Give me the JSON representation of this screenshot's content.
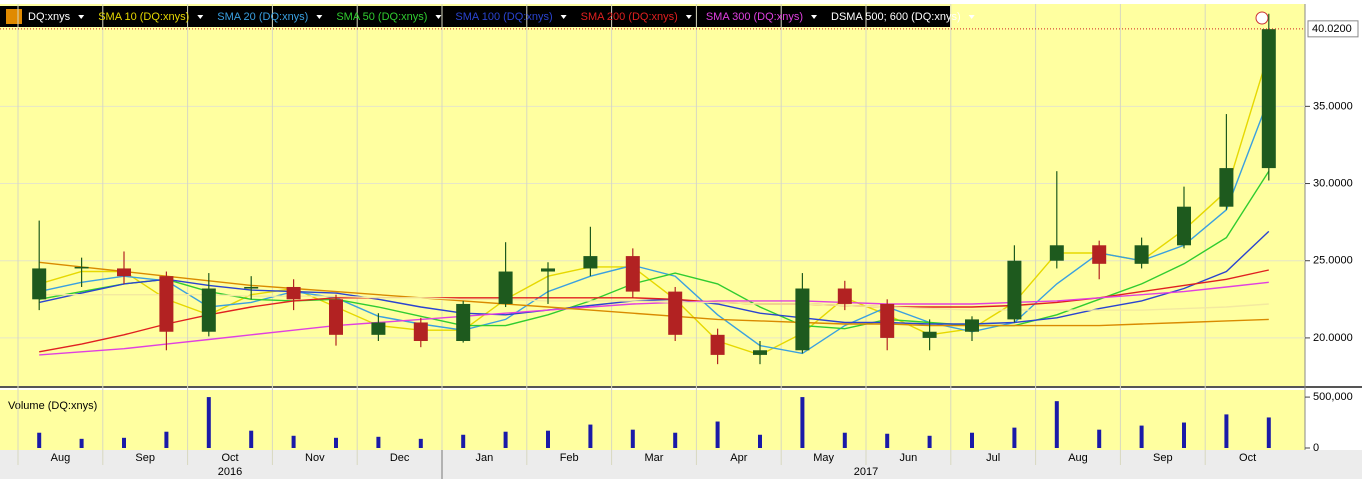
{
  "chart_data": [
    {
      "type": "candlestick",
      "name": "DQ:xnys",
      "categories": [
        "Aug",
        null,
        "Sep",
        null,
        "Oct",
        null,
        "Nov",
        null,
        "Dec",
        null,
        "Jan",
        null,
        "Feb",
        null,
        "Mar",
        null,
        "Apr",
        null,
        "May",
        null,
        "Jun",
        null,
        "Jul",
        null,
        "Aug",
        null,
        "Sep",
        null,
        "Oct",
        null
      ],
      "years": [
        "2016",
        "2017"
      ],
      "open": [
        22.5,
        24.5,
        24.5,
        24.0,
        20.4,
        23.2,
        23.3,
        22.5,
        20.2,
        21.0,
        19.8,
        22.2,
        24.3,
        24.5,
        25.3,
        23.0,
        20.2,
        18.9,
        19.2,
        23.2,
        22.2,
        20.0,
        20.4,
        21.2,
        25.0,
        26.0,
        24.8,
        26.0,
        28.5,
        31.0
      ],
      "high": [
        27.6,
        25.2,
        25.6,
        24.3,
        24.2,
        24.0,
        23.8,
        22.8,
        21.6,
        21.3,
        22.4,
        26.2,
        24.9,
        27.2,
        25.8,
        23.3,
        20.6,
        19.8,
        24.2,
        23.7,
        22.5,
        21.2,
        21.4,
        26.0,
        30.8,
        26.3,
        26.5,
        29.8,
        34.5,
        41.0
      ],
      "low": [
        21.8,
        23.3,
        23.5,
        19.2,
        20.1,
        22.5,
        21.8,
        19.5,
        19.8,
        19.4,
        19.7,
        22.0,
        22.2,
        24.0,
        22.6,
        19.8,
        18.3,
        18.3,
        19.0,
        21.8,
        19.2,
        19.2,
        19.8,
        21.0,
        24.5,
        23.8,
        24.5,
        25.8,
        28.3,
        30.2
      ],
      "close": [
        24.5,
        24.6,
        24.0,
        20.4,
        23.2,
        23.3,
        22.5,
        20.2,
        21.0,
        19.8,
        22.2,
        24.3,
        24.5,
        25.3,
        23.0,
        20.2,
        18.9,
        19.2,
        23.2,
        22.2,
        20.0,
        20.4,
        21.2,
        25.0,
        26.0,
        24.8,
        26.0,
        28.5,
        31.0,
        40.0
      ],
      "up_color": "#1e5a1e",
      "down_color": "#b22222",
      "series": [
        {
          "name": "SMA 10 (DQ:xnys)",
          "color": "#e6d800",
          "values": [
            23.5,
            24.3,
            24.3,
            22.5,
            21.5,
            22.8,
            23.2,
            22.0,
            20.8,
            20.5,
            20.5,
            22.5,
            24.0,
            24.6,
            24.6,
            22.5,
            19.8,
            18.9,
            20.3,
            22.6,
            21.5,
            20.2,
            20.6,
            22.3,
            25.5,
            25.5,
            25.0,
            27.0,
            29.5,
            38.5
          ]
        },
        {
          "name": "SMA 20 (DQ:xnys)",
          "color": "#3aa0e0",
          "values": [
            23.0,
            23.6,
            24.0,
            23.7,
            22.0,
            22.3,
            23.0,
            22.6,
            21.4,
            20.9,
            20.5,
            21.2,
            23.0,
            24.0,
            24.7,
            24.0,
            21.5,
            19.5,
            19.0,
            20.8,
            22.0,
            21.0,
            20.4,
            21.0,
            23.5,
            25.5,
            25.0,
            26.0,
            28.3,
            35.5
          ]
        },
        {
          "name": "SMA 50 (DQ:xnys)",
          "color": "#30cc30",
          "values": [
            22.5,
            23.0,
            23.5,
            23.8,
            23.0,
            22.5,
            22.4,
            22.5,
            22.0,
            21.4,
            20.8,
            20.8,
            21.5,
            22.4,
            23.5,
            24.2,
            23.5,
            22.0,
            20.8,
            20.6,
            21.2,
            21.0,
            20.8,
            20.8,
            21.5,
            22.5,
            23.5,
            24.8,
            26.5,
            30.8
          ]
        },
        {
          "name": "SMA 100 (DQ:xnys)",
          "color": "#2a44d0",
          "values": [
            22.3,
            22.9,
            23.5,
            23.8,
            23.4,
            23.1,
            23.0,
            22.9,
            22.5,
            22.0,
            21.6,
            21.5,
            21.8,
            22.1,
            22.4,
            22.5,
            22.2,
            21.6,
            21.3,
            21.0,
            21.0,
            20.9,
            20.9,
            21.0,
            21.3,
            21.9,
            22.4,
            23.2,
            24.3,
            26.9
          ]
        },
        {
          "name": "SMA 200 (DQ:xnys)",
          "color": "#e02020",
          "values": [
            19.1,
            19.6,
            20.2,
            20.9,
            21.5,
            22.0,
            22.4,
            22.6,
            22.6,
            22.6,
            22.6,
            22.6,
            22.6,
            22.6,
            22.6,
            22.5,
            22.3,
            22.2,
            22.2,
            22.1,
            22.0,
            22.0,
            22.0,
            22.1,
            22.3,
            22.6,
            23.0,
            23.4,
            23.8,
            24.4
          ]
        },
        {
          "name": "SMA 300 (DQ:xnys)",
          "color": "#e040e0",
          "values": [
            18.9,
            19.1,
            19.3,
            19.6,
            19.9,
            20.2,
            20.5,
            20.8,
            21.0,
            21.2,
            21.4,
            21.6,
            21.8,
            22.0,
            22.2,
            22.3,
            22.4,
            22.4,
            22.4,
            22.3,
            22.2,
            22.2,
            22.2,
            22.3,
            22.4,
            22.6,
            22.8,
            23.0,
            23.3,
            23.6
          ]
        },
        {
          "name": "DSMA 500; 600 (DQ:xnys)",
          "color": "#d98a00",
          "values": [
            24.9,
            24.6,
            24.3,
            24.0,
            23.7,
            23.4,
            23.2,
            23.0,
            22.8,
            22.6,
            22.4,
            22.2,
            22.0,
            21.8,
            21.6,
            21.4,
            21.2,
            21.1,
            21.0,
            20.9,
            20.9,
            20.8,
            20.8,
            20.8,
            20.8,
            20.8,
            20.9,
            21.0,
            21.1,
            21.2
          ]
        },
        {
          "color": "#f3e9a0",
          "values": [
            22.8,
            22.8,
            22.8,
            22.8,
            22.8,
            22.7,
            22.7,
            22.7,
            22.6,
            22.6,
            22.5,
            22.5,
            22.4,
            22.4,
            22.4,
            22.3,
            22.3,
            22.2,
            22.2,
            22.1,
            22.0,
            21.9,
            21.8,
            21.8,
            21.8,
            21.8,
            21.8,
            21.9,
            22.0,
            22.2
          ]
        }
      ],
      "last_price": {
        "value": 40.02,
        "label": "40.0200"
      },
      "ylim": [
        16.95,
        41.5
      ],
      "yticks": [
        {
          "value": 20,
          "label": "20.0000"
        },
        {
          "value": 25,
          "label": "25.0000"
        },
        {
          "value": 30,
          "label": "30.0000"
        },
        {
          "value": 35,
          "label": "35.0000"
        }
      ],
      "grid": true
    },
    {
      "type": "bar",
      "title": "Volume (DQ:xnys)",
      "color": "#1a1aa8",
      "values": [
        150000,
        90000,
        100000,
        160000,
        500000,
        170000,
        120000,
        100000,
        110000,
        90000,
        130000,
        160000,
        170000,
        230000,
        180000,
        150000,
        260000,
        130000,
        500000,
        150000,
        140000,
        120000,
        150000,
        200000,
        460000,
        180000,
        220000,
        250000,
        330000,
        300000
      ],
      "ylim": [
        0,
        550000
      ],
      "yticks": [
        0,
        {
          "value": 500000,
          "label": "500,000"
        }
      ]
    }
  ]
}
